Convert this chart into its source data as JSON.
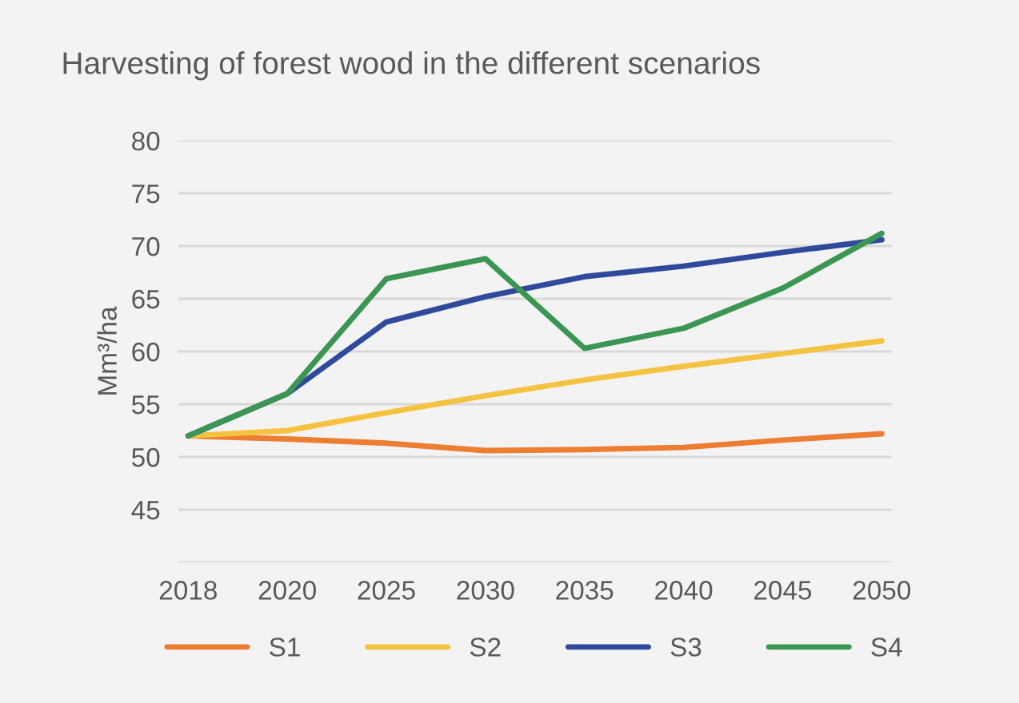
{
  "chart_data": {
    "type": "line",
    "title": "Harvesting of forest wood in the different scenarios",
    "ylabel": "Mm³/ha",
    "categories": [
      "2018",
      "2020",
      "2025",
      "2030",
      "2035",
      "2040",
      "2045",
      "2050"
    ],
    "series": [
      {
        "name": "S1",
        "color": "#ed7d31",
        "values": [
          52,
          51.7,
          51.3,
          50.6,
          50.7,
          50.9,
          51.6,
          52.2
        ]
      },
      {
        "name": "S2",
        "color": "#f5c342",
        "values": [
          52,
          52.5,
          54.2,
          55.8,
          57.3,
          58.6,
          59.8,
          61
        ]
      },
      {
        "name": "S3",
        "color": "#2f4a9c",
        "values": [
          52,
          56,
          62.8,
          65.2,
          67.1,
          68.1,
          69.4,
          70.6
        ]
      },
      {
        "name": "S4",
        "color": "#3a9652",
        "values": [
          52,
          56,
          66.9,
          68.8,
          60.3,
          62.2,
          66,
          71.2
        ]
      }
    ],
    "ylim": [
      40,
      80
    ],
    "yticks": [
      {
        "value": 40,
        "label": null
      },
      45,
      50,
      55,
      60,
      65,
      70,
      75,
      80
    ],
    "grid": "y",
    "legend": "bottom",
    "marker": "none",
    "line_style": "solid"
  }
}
